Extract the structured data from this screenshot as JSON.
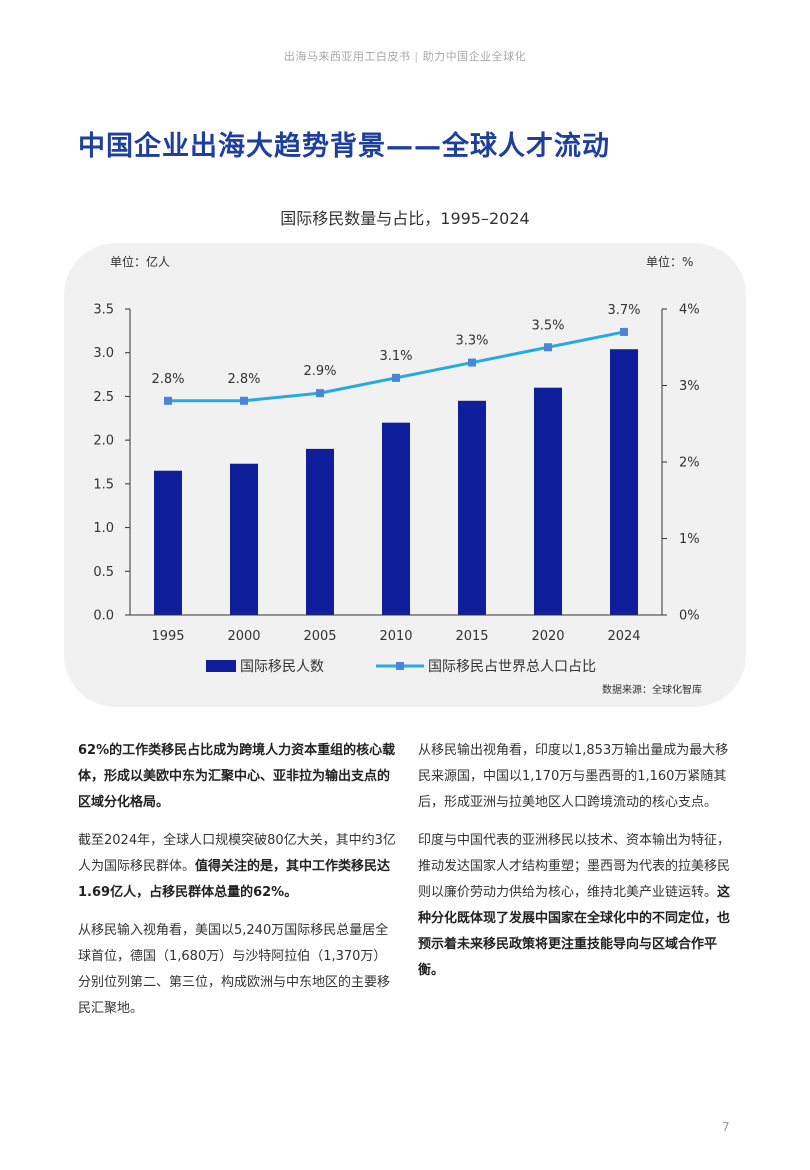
{
  "header": {
    "left": "出海马来西亚用工白皮书",
    "separator": "|",
    "right": "助力中国企业全球化"
  },
  "page_title": "中国企业出海大趋势背景——全球人才流动",
  "chart_data": {
    "type": "bar",
    "title": "国际移民数量与占比，1995–2024",
    "unit_left": "单位：亿人",
    "unit_right": "单位：%",
    "categories": [
      "1995",
      "2000",
      "2005",
      "2010",
      "2015",
      "2020",
      "2024"
    ],
    "series": [
      {
        "name": "国际移民人数",
        "type": "bar",
        "axis": "left",
        "values": [
          1.65,
          1.73,
          1.9,
          2.2,
          2.45,
          2.6,
          3.04
        ]
      },
      {
        "name": "国际移民占世界总人口占比",
        "type": "line",
        "axis": "right",
        "values": [
          2.8,
          2.8,
          2.9,
          3.1,
          3.3,
          3.5,
          3.7
        ],
        "labels": [
          "2.8%",
          "2.8%",
          "2.9%",
          "3.1%",
          "3.3%",
          "3.5%",
          "3.7%"
        ]
      }
    ],
    "y_left": {
      "ticks": [
        "0.0",
        "0.5",
        "1.0",
        "1.5",
        "2.0",
        "2.5",
        "3.0",
        "3.5"
      ],
      "range": [
        0,
        3.5
      ]
    },
    "y_right": {
      "ticks": [
        "0%",
        "1%",
        "2%",
        "3%",
        "4%"
      ],
      "range": [
        0,
        4
      ]
    },
    "grid": false,
    "legend_position": "bottom",
    "source": "数据来源：全球化智库",
    "colors": {
      "bar": "#0f1f9c",
      "line": "#29a9e1",
      "marker": "#4a86d8"
    }
  },
  "colors": {
    "title": "#1e3f9c",
    "panel": "#f1f1f1",
    "text": "#333333"
  },
  "left_column": {
    "p1": "62%的工作类移民占比成为跨境人力资本重组的核心载体，形成以美欧中东为汇聚中心、亚非拉为输出支点的区域分化格局。",
    "p2_normal": "截至2024年，全球人口规模突破80亿大关，其中约3亿人为国际移民群体。",
    "p2_bold": "值得关注的是，其中工作类移民达1.69亿人，占移民群体总量的62%。",
    "p3": "从移民输入视角看，美国以5,240万国际移民总量居全球首位，德国（1,680万）与沙特阿拉伯（1,370万）分别位列第二、第三位，构成欧洲与中东地区的主要移民汇聚地。"
  },
  "right_column": {
    "p1": "从移民输出视角看，印度以1,853万输出量成为最大移民来源国，中国以1,170万与墨西哥的1,160万紧随其后，形成亚洲与拉美地区人口跨境流动的核心支点。",
    "p2_normal": "印度与中国代表的亚洲移民以技术、资本输出为特征，推动发达国家人才结构重塑；墨西哥为代表的拉美移民则以廉价劳动力供给为核心，维持北美产业链运转。",
    "p2_bold": "这种分化既体现了发展中国家在全球化中的不同定位，也预示着未来移民政策将更注重技能导向与区域合作平衡。"
  },
  "page_number": "7"
}
